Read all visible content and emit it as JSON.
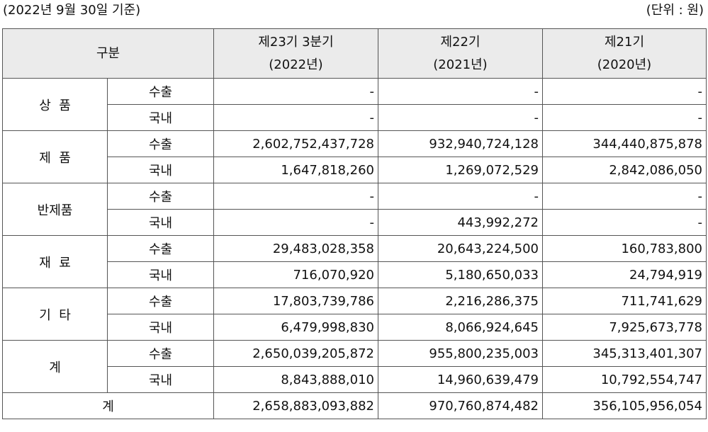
{
  "caption": {
    "date": "(2022년 9월 30일 기준)",
    "unit": "(단위 : 원)"
  },
  "header": {
    "category": "구분",
    "periods": [
      {
        "name": "제23기 3분기",
        "year": "(2022년)"
      },
      {
        "name": "제22기",
        "year": "(2021년)"
      },
      {
        "name": "제21기",
        "year": "(2020년)"
      }
    ]
  },
  "groups": [
    {
      "label": "상  품",
      "rows": [
        {
          "type": "수출",
          "values": [
            "-",
            "-",
            "-"
          ]
        },
        {
          "type": "국내",
          "values": [
            "-",
            "-",
            "-"
          ]
        }
      ]
    },
    {
      "label": "제  품",
      "rows": [
        {
          "type": "수출",
          "values": [
            "2,602,752,437,728",
            "932,940,724,128",
            "344,440,875,878"
          ]
        },
        {
          "type": "국내",
          "values": [
            "1,647,818,260",
            "1,269,072,529",
            "2,842,086,050"
          ]
        }
      ]
    },
    {
      "label": "반제품",
      "rows": [
        {
          "type": "수출",
          "values": [
            "-",
            "-",
            "-"
          ]
        },
        {
          "type": "국내",
          "values": [
            "-",
            "443,992,272",
            "-"
          ]
        }
      ]
    },
    {
      "label": "재  료",
      "rows": [
        {
          "type": "수출",
          "values": [
            "29,483,028,358",
            "20,643,224,500",
            "160,783,800"
          ]
        },
        {
          "type": "국내",
          "values": [
            "716,070,920",
            "5,180,650,033",
            "24,794,919"
          ]
        }
      ]
    },
    {
      "label": "기  타",
      "rows": [
        {
          "type": "수출",
          "values": [
            "17,803,739,786",
            "2,216,286,375",
            "711,741,629"
          ]
        },
        {
          "type": "국내",
          "values": [
            "6,479,998,830",
            "8,066,924,645",
            "7,925,673,778"
          ]
        }
      ]
    },
    {
      "label": "계",
      "rows": [
        {
          "type": "수출",
          "values": [
            "2,650,039,205,872",
            "955,800,235,003",
            "345,313,401,307"
          ]
        },
        {
          "type": "국내",
          "values": [
            "8,843,888,010",
            "14,960,639,479",
            "10,792,554,747"
          ]
        }
      ]
    }
  ],
  "total": {
    "label": "계",
    "values": [
      "2,658,883,093,882",
      "970,760,874,482",
      "356,105,956,054"
    ]
  }
}
